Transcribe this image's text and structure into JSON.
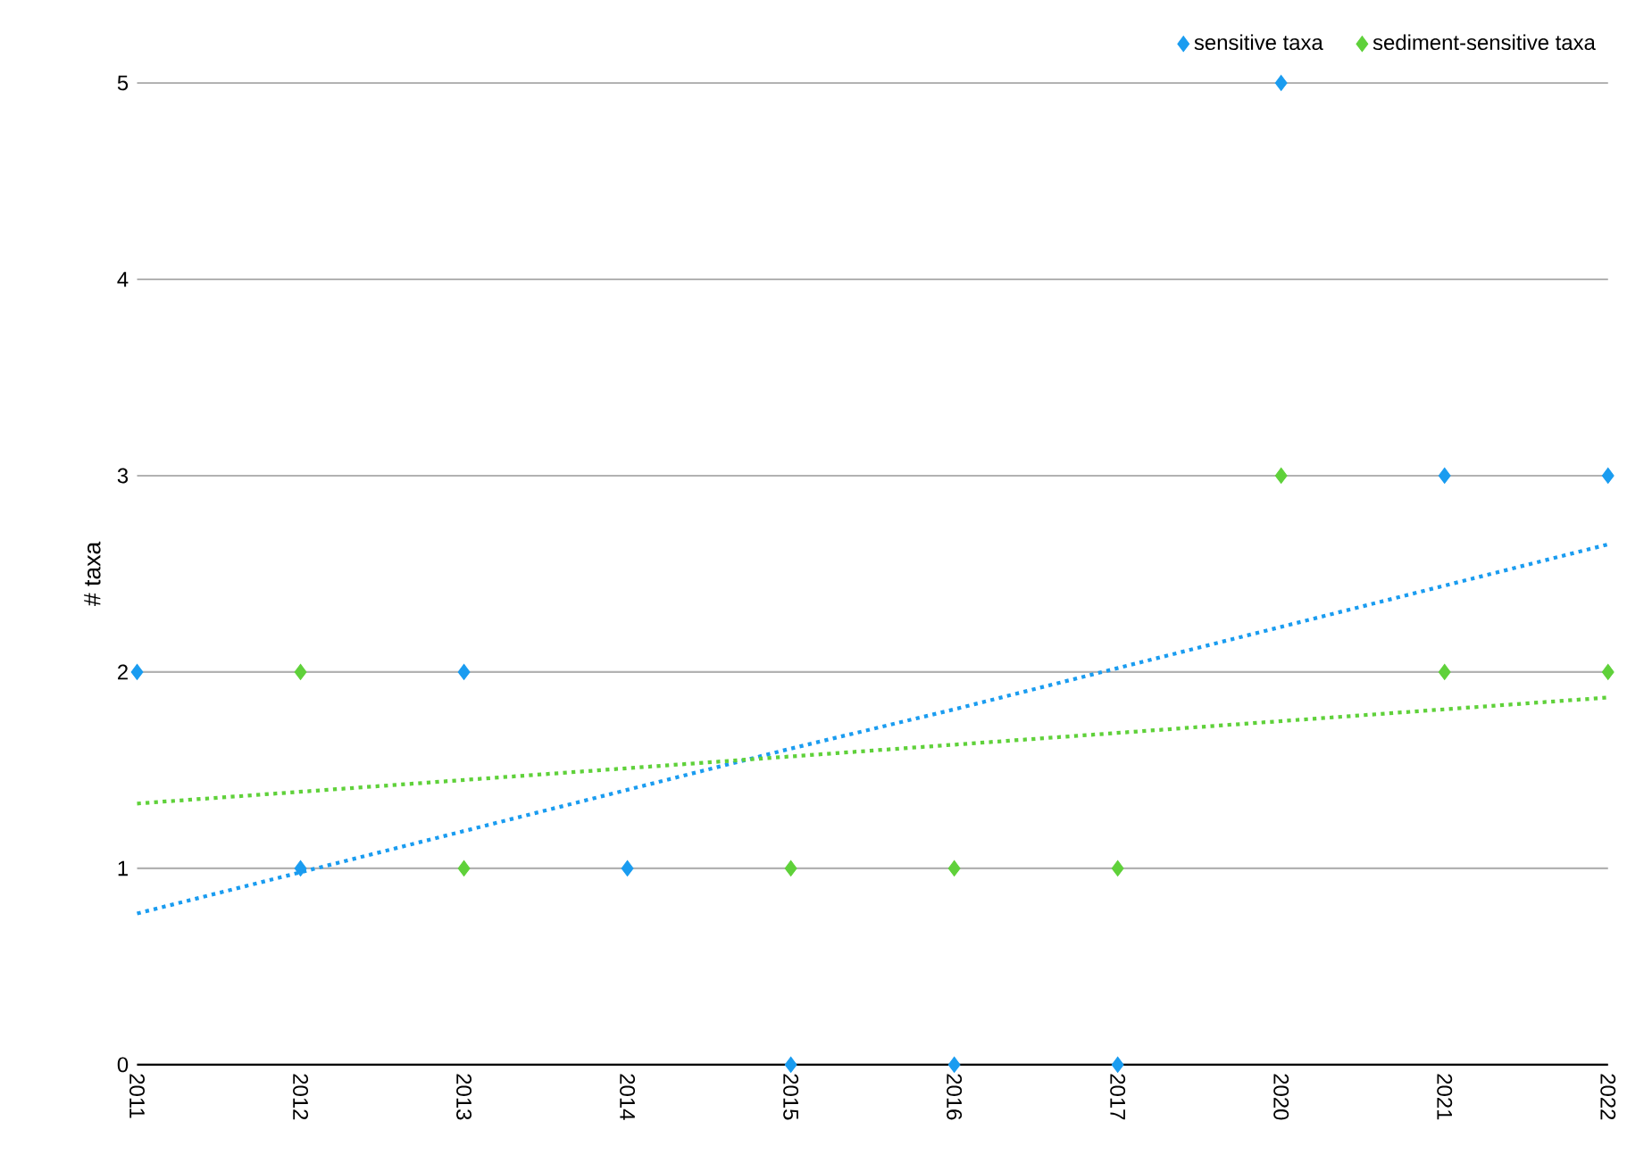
{
  "chart_data": {
    "type": "scatter",
    "ylabel": "# taxa",
    "categories": [
      "2011",
      "2012",
      "2013",
      "2014",
      "2015",
      "2016",
      "2017",
      "2020",
      "2021",
      "2022"
    ],
    "series": [
      {
        "name": "sensitive taxa",
        "color": "#1a9cf0",
        "marker": "diamond",
        "values": [
          2,
          1,
          2,
          1,
          0,
          0,
          0,
          5,
          3,
          3
        ]
      },
      {
        "name": "sediment-sensitive taxa",
        "color": "#5fd13a",
        "marker": "diamond",
        "values": [
          null,
          2,
          1,
          null,
          1,
          1,
          1,
          3,
          2,
          2
        ]
      },
      {
        "type": "line",
        "color": "#1a9cf0",
        "marker": "none",
        "values": [
          0.77,
          0.98,
          1.19,
          1.4,
          1.61,
          1.81,
          2.02,
          2.23,
          2.44,
          2.65
        ],
        "line_style": "dotted"
      },
      {
        "type": "line",
        "color": "#5fd13a",
        "marker": "none",
        "values": [
          1.33,
          1.39,
          1.45,
          1.51,
          1.57,
          1.63,
          1.69,
          1.75,
          1.81,
          1.87
        ],
        "line_style": "dotted"
      }
    ],
    "ylim": [
      0,
      5
    ],
    "yticks": [
      0,
      1,
      2,
      3,
      4,
      5
    ],
    "grid": "y",
    "legend": "top right"
  }
}
